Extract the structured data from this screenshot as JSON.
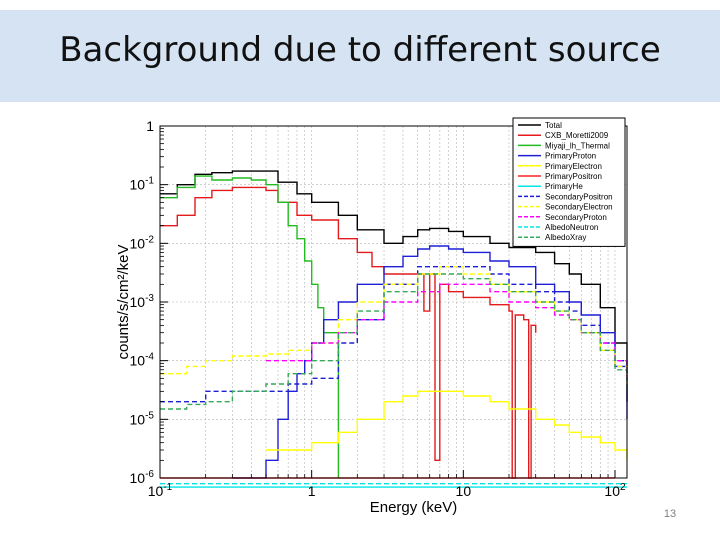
{
  "slide": {
    "title": "Background due to different source",
    "page_number": "13"
  },
  "chart_data": {
    "type": "line",
    "title": "",
    "xlabel": "Energy (keV)",
    "ylabel": "counts/s/cm²/keV",
    "x_scale": "log",
    "y_scale": "log",
    "xlim": [
      0.1,
      120
    ],
    "ylim": [
      1e-06,
      1
    ],
    "grid": true,
    "legend_position": "top-right",
    "x_ticks": [
      "10^-1",
      "1",
      "10",
      "10^2"
    ],
    "y_ticks": [
      "1",
      "10^-1",
      "10^-2",
      "10^-3",
      "10^-4",
      "10^-5",
      "10^-6"
    ],
    "series": [
      {
        "name": "Total",
        "color": "#000000",
        "style": "solid",
        "x": [
          0.1,
          0.13,
          0.17,
          0.22,
          0.3,
          0.4,
          0.5,
          0.6,
          0.8,
          1,
          1.5,
          2,
          3,
          4,
          5,
          6,
          8,
          10,
          15,
          20,
          30,
          40,
          50,
          60,
          80,
          100,
          120
        ],
        "y": [
          0.07,
          0.1,
          0.15,
          0.16,
          0.17,
          0.17,
          0.17,
          0.11,
          0.07,
          0.05,
          0.03,
          0.017,
          0.01,
          0.013,
          0.017,
          0.018,
          0.016,
          0.013,
          0.01,
          0.0085,
          0.007,
          0.0045,
          0.003,
          0.002,
          0.0008,
          0.0002,
          2e-05
        ]
      },
      {
        "name": "CXB_Moretti2009",
        "color": "#e41a1c",
        "style": "solid",
        "x": [
          0.1,
          0.13,
          0.17,
          0.22,
          0.3,
          0.4,
          0.5,
          0.6,
          0.8,
          1,
          1.5,
          2,
          2.5,
          3,
          4,
          5,
          5.5,
          6,
          6.5,
          7,
          8,
          10,
          15,
          20,
          21,
          22,
          25,
          27,
          28,
          30
        ],
        "y": [
          0.02,
          0.03,
          0.06,
          0.08,
          0.09,
          0.09,
          0.08,
          0.05,
          0.03,
          0.025,
          0.012,
          0.007,
          0.004,
          0.003,
          0.003,
          0.003,
          0.0007,
          0.003,
          2e-06,
          0.002,
          0.0015,
          0.0012,
          0.0009,
          0.0007,
          1e-06,
          0.0006,
          0.0005,
          1e-06,
          0.0004,
          0.0003
        ]
      },
      {
        "name": "Miyaji_lh_Thermal",
        "color": "#22bb22",
        "style": "solid",
        "x": [
          0.1,
          0.13,
          0.17,
          0.22,
          0.3,
          0.4,
          0.5,
          0.6,
          0.7,
          0.8,
          0.9,
          1,
          1.1,
          1.2,
          1.5
        ],
        "y": [
          0.06,
          0.09,
          0.14,
          0.12,
          0.13,
          0.12,
          0.1,
          0.05,
          0.02,
          0.012,
          0.005,
          0.002,
          0.0008,
          0.0003,
          1e-06
        ]
      },
      {
        "name": "PrimaryProton",
        "color": "#1f1fd6",
        "style": "solid",
        "x": [
          0.3,
          0.4,
          0.5,
          0.6,
          0.7,
          0.8,
          0.9,
          1,
          1.2,
          1.5,
          2,
          3,
          4,
          5,
          6,
          8,
          10,
          15,
          20,
          30,
          40,
          50,
          60,
          80,
          100,
          120
        ],
        "y": [
          1e-06,
          1e-06,
          2e-06,
          1e-05,
          3e-05,
          6e-05,
          0.0001,
          0.0002,
          0.0005,
          0.001,
          0.002,
          0.004,
          0.006,
          0.008,
          0.009,
          0.008,
          0.007,
          0.005,
          0.004,
          0.002,
          0.0015,
          0.001,
          0.0006,
          0.0003,
          8e-05,
          1e-05
        ]
      },
      {
        "name": "PrimaryElectron",
        "color": "#ffff00",
        "style": "solid",
        "x": [
          0.5,
          1,
          1.5,
          2,
          3,
          4,
          5,
          6,
          8,
          10,
          15,
          20,
          30,
          40,
          50,
          60,
          80,
          100,
          120
        ],
        "y": [
          3e-06,
          4e-06,
          6e-06,
          1e-05,
          2e-05,
          2.5e-05,
          3e-05,
          3e-05,
          3e-05,
          2.5e-05,
          2e-05,
          1.5e-05,
          1e-05,
          8e-06,
          6e-06,
          5e-06,
          4e-06,
          3e-06,
          2e-06
        ]
      },
      {
        "name": "PrimaryPositron",
        "color": "#ff2020",
        "style": "solid",
        "x": [
          0.1,
          0.5,
          1,
          2,
          5,
          10,
          100
        ],
        "y": [
          1e-06,
          1e-06,
          1e-06,
          1e-06,
          1e-06,
          1e-06,
          1e-06
        ]
      },
      {
        "name": "PrimaryHe",
        "color": "#00e5e5",
        "style": "solid",
        "x": [
          0.1,
          0.5,
          1,
          2,
          5,
          10,
          30,
          100,
          120
        ],
        "y": [
          7e-07,
          7e-07,
          7e-07,
          7e-07,
          7e-07,
          7e-07,
          7e-07,
          7e-07,
          7e-07
        ]
      },
      {
        "name": "SecondaryPositron",
        "color": "#1f1fd6",
        "style": "dashed",
        "x": [
          0.1,
          0.15,
          0.2,
          0.3,
          0.5,
          0.7,
          1,
          1.5,
          2,
          3,
          5,
          7,
          10,
          15,
          20,
          30,
          40,
          50,
          60,
          80,
          100,
          120
        ],
        "y": [
          2e-05,
          2e-05,
          3e-05,
          3e-05,
          3e-05,
          4e-05,
          5e-05,
          0.0002,
          0.0005,
          0.002,
          0.004,
          0.004,
          0.004,
          0.003,
          0.002,
          0.0015,
          0.001,
          0.0007,
          0.0004,
          0.0002,
          0.0001,
          5e-05
        ]
      },
      {
        "name": "SecondaryElectron",
        "color": "#ffff00",
        "style": "dashed",
        "x": [
          0.1,
          0.15,
          0.2,
          0.3,
          0.5,
          0.7,
          1,
          1.5,
          2,
          3,
          5,
          7,
          10,
          15,
          20,
          30,
          40,
          50,
          60,
          80,
          100,
          120
        ],
        "y": [
          6e-05,
          8e-05,
          0.0001,
          0.00012,
          0.00013,
          0.00015,
          0.0002,
          0.0005,
          0.001,
          0.002,
          0.003,
          0.004,
          0.003,
          0.002,
          0.0015,
          0.001,
          0.0007,
          0.0005,
          0.0003,
          0.00015,
          8e-05,
          4e-05
        ]
      },
      {
        "name": "SecondaryProton",
        "color": "#ff00ff",
        "style": "dashed",
        "x": [
          0.5,
          1,
          1.5,
          2,
          3,
          5,
          7,
          10,
          15,
          20,
          30,
          40,
          50,
          60,
          80,
          100,
          120
        ],
        "y": [
          0.0001,
          0.0002,
          0.0003,
          0.0005,
          0.001,
          0.0015,
          0.002,
          0.002,
          0.0015,
          0.001,
          0.0008,
          0.0006,
          0.0005,
          0.0003,
          0.0002,
          0.0001,
          5e-05
        ]
      },
      {
        "name": "AlbedoNeutron",
        "color": "#00e5e5",
        "style": "dashed",
        "x": [
          0.1,
          120
        ],
        "y": [
          8e-07,
          8e-07
        ]
      },
      {
        "name": "AlbedoXray",
        "color": "#33aa55",
        "style": "dashed",
        "x": [
          0.1,
          0.15,
          0.2,
          0.3,
          0.5,
          0.7,
          1,
          1.5,
          2,
          3,
          5,
          7,
          10,
          15,
          20,
          30,
          40,
          50,
          60,
          80,
          100,
          120
        ],
        "y": [
          1.5e-05,
          1.8e-05,
          2e-05,
          3e-05,
          4e-05,
          6e-05,
          0.0001,
          0.0003,
          0.0007,
          0.0015,
          0.003,
          0.003,
          0.0025,
          0.002,
          0.0015,
          0.001,
          0.0007,
          0.0005,
          0.0003,
          0.00015,
          7e-05,
          3e-05
        ]
      }
    ]
  }
}
